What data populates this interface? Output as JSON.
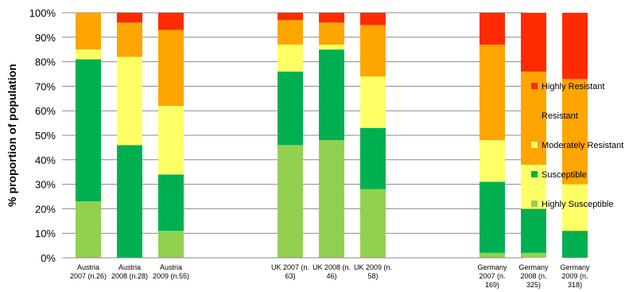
{
  "chart_data": {
    "type": "bar",
    "stacked": true,
    "ylabel": "% proportion of population",
    "ylim": [
      0,
      100
    ],
    "yticks": [
      "0%",
      "10%",
      "20%",
      "30%",
      "40%",
      "50%",
      "60%",
      "70%",
      "80%",
      "90%",
      "100%"
    ],
    "grid": true,
    "legend_position": "right",
    "categories": [
      {
        "lines": [
          "Austria",
          "2007 (n.26)"
        ],
        "group": 0
      },
      {
        "lines": [
          "Austria",
          "2008 (n.28)"
        ],
        "group": 0
      },
      {
        "lines": [
          "Austria",
          "2009 (n.55)"
        ],
        "group": 0
      },
      {
        "lines": [
          "UK 2007 (n.",
          "63)"
        ],
        "group": 1
      },
      {
        "lines": [
          "UK 2008 (n.",
          "46)"
        ],
        "group": 1
      },
      {
        "lines": [
          "UK 2009 (n.",
          "58)"
        ],
        "group": 1
      },
      {
        "lines": [
          "Germany",
          "2007 (n.",
          "169)"
        ],
        "group": 2
      },
      {
        "lines": [
          "Germany",
          "2008 (n.",
          "325)"
        ],
        "group": 2
      },
      {
        "lines": [
          "Germany",
          "2009 (n.",
          "318)"
        ],
        "group": 2
      }
    ],
    "series": [
      {
        "name": "Highly Susceptible",
        "color": "#92D050",
        "values": [
          23,
          0,
          11,
          46,
          48,
          28,
          2,
          2,
          0
        ]
      },
      {
        "name": "Susceptible",
        "color": "#00B050",
        "values": [
          58,
          46,
          23,
          30,
          37,
          25,
          29,
          18,
          11
        ]
      },
      {
        "name": "Moderately Resistant",
        "color": "#FFFF66",
        "values": [
          4,
          36,
          28,
          11,
          2,
          21,
          17,
          18,
          19
        ]
      },
      {
        "name": "Resistant",
        "color": "#FFA500",
        "values": [
          15,
          14,
          31,
          10,
          9,
          21,
          39,
          38,
          43
        ]
      },
      {
        "name": "Highly Resistant",
        "color": "#FF2A00",
        "values": [
          0,
          4,
          7,
          3,
          4,
          5,
          13,
          24,
          27
        ]
      }
    ]
  }
}
